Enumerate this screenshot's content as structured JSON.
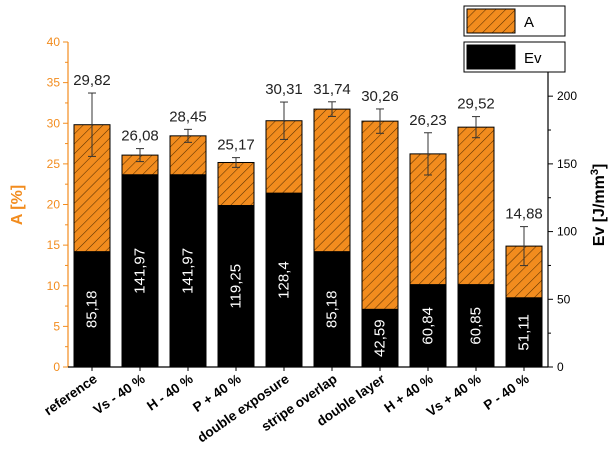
{
  "chart_data": {
    "type": "bar",
    "categories": [
      "reference",
      "Vs - 40 %",
      "H - 40 %",
      "P + 40 %",
      "double exposure",
      "stripe overlap",
      "double layer",
      "H + 40 %",
      "Vs + 40 %",
      "P - 40 %"
    ],
    "series": [
      {
        "name": "A",
        "axis": "left",
        "values": [
          29.82,
          26.08,
          28.45,
          25.17,
          30.31,
          31.74,
          30.26,
          26.23,
          29.52,
          14.88
        ],
        "labels": [
          "29,82",
          "26,08",
          "28,45",
          "25,17",
          "30,31",
          "31,74",
          "30,26",
          "26,23",
          "29,52",
          "14,88"
        ],
        "error": [
          3.9,
          0.8,
          0.8,
          0.6,
          2.3,
          0.9,
          1.5,
          2.6,
          1.3,
          2.4
        ],
        "color": "#f28c1e",
        "pattern": "diagonal-hatch"
      },
      {
        "name": "Ev",
        "axis": "right",
        "values": [
          85.18,
          141.97,
          141.97,
          119.25,
          128.4,
          85.18,
          42.59,
          60.84,
          60.85,
          51.11
        ],
        "labels": [
          "85,18",
          "141,97",
          "141,97",
          "119,25",
          "128,4",
          "85,18",
          "42,59",
          "60,84",
          "60,85",
          "51,11"
        ],
        "color": "#000000"
      }
    ],
    "y_left": {
      "label": "A [%]",
      "min": 0,
      "max": 40,
      "ticks": [
        0,
        5,
        10,
        15,
        20,
        25,
        30,
        35,
        40
      ],
      "color": "#f28c1e"
    },
    "y_right": {
      "label": "Ev [J/mm³]",
      "label_main": "Ev [J/mm",
      "label_sup": "3",
      "label_end": "]",
      "min": 0,
      "max": 240,
      "ticks": [
        0,
        50,
        100,
        150,
        200
      ],
      "color": "#000000"
    },
    "legend": {
      "position": "top-right",
      "entries": [
        "A",
        "Ev"
      ]
    },
    "grid": false
  }
}
